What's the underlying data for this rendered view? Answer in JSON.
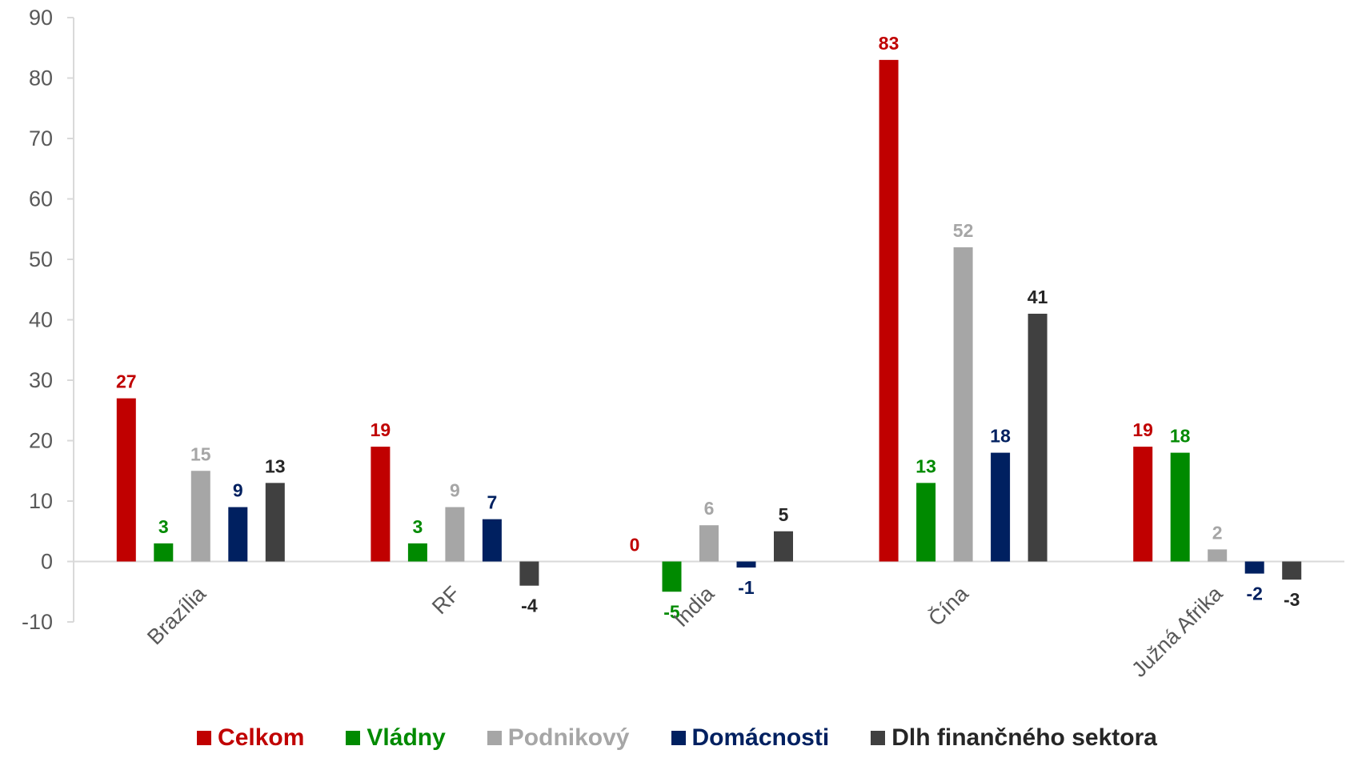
{
  "chart_data": {
    "type": "bar",
    "categories": [
      "Brazília",
      "RF",
      "India",
      "Čína",
      "Južná Afrika"
    ],
    "series": [
      {
        "name": "Celkom",
        "color": "#C00000",
        "values": [
          27,
          19,
          0,
          83,
          19
        ]
      },
      {
        "name": "Vládny",
        "color": "#008A00",
        "values": [
          3,
          3,
          -5,
          13,
          18
        ]
      },
      {
        "name": "Podnikový",
        "color": "#A6A6A6",
        "values": [
          15,
          9,
          6,
          52,
          2
        ]
      },
      {
        "name": "Domácnosti",
        "color": "#002060",
        "values": [
          9,
          7,
          -1,
          18,
          -2
        ]
      },
      {
        "name": "Dlh finančného sektora",
        "color": "#404040",
        "values": [
          13,
          -4,
          5,
          41,
          -3
        ]
      }
    ],
    "label_colors": [
      "#C00000",
      "#008A00",
      "#A6A6A6",
      "#002060",
      "#262626"
    ],
    "ylim": [
      -10,
      90
    ],
    "yticks": [
      -10,
      0,
      10,
      20,
      30,
      40,
      50,
      60,
      70,
      80,
      90
    ],
    "grid": false,
    "legend_position": "bottom",
    "title": "",
    "xlabel": "",
    "ylabel": ""
  }
}
